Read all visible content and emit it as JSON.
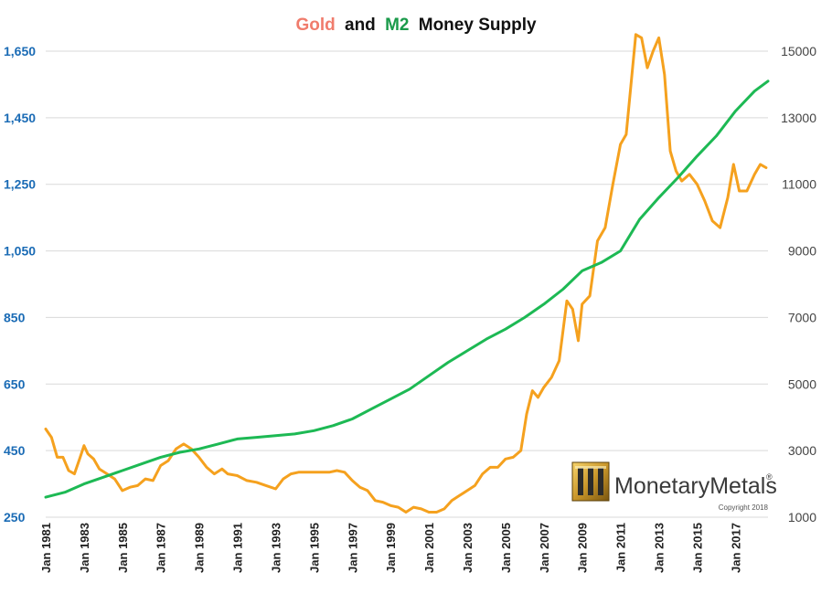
{
  "chart_data": {
    "type": "line",
    "title": {
      "part1": "Gold",
      "part2": "and",
      "part3": "M2",
      "part4": "Money Supply"
    },
    "left_axis": {
      "ticks": [
        "250",
        "450",
        "650",
        "850",
        "1,050",
        "1,250",
        "1,450",
        "1,650"
      ],
      "range": [
        250,
        1650
      ]
    },
    "right_axis": {
      "ticks": [
        "1000",
        "3000",
        "5000",
        "7000",
        "9000",
        "11000",
        "13000",
        "15000"
      ],
      "range": [
        1000,
        15000
      ]
    },
    "x_axis": {
      "ticks": [
        "Jan 1981",
        "Jan 1983",
        "Jan 1985",
        "Jan 1987",
        "Jan 1989",
        "Jan 1991",
        "Jan 1993",
        "Jan 1995",
        "Jan 1997",
        "Jan 1999",
        "Jan 2001",
        "Jan 2003",
        "Jan 2005",
        "Jan 2007",
        "Jan 2009",
        "Jan 2011",
        "Jan 2013",
        "Jan 2015",
        "Jan 2017"
      ],
      "range": [
        1981,
        2018.7
      ]
    },
    "series": [
      {
        "name": "Gold",
        "axis": "left",
        "color": "#f5a11e",
        "x": [
          1981.0,
          1981.3,
          1981.6,
          1981.9,
          1982.2,
          1982.5,
          1982.8,
          1983.0,
          1983.2,
          1983.5,
          1983.8,
          1984.2,
          1984.6,
          1985.0,
          1985.4,
          1985.8,
          1986.2,
          1986.6,
          1987.0,
          1987.4,
          1987.8,
          1988.2,
          1988.6,
          1989.0,
          1989.4,
          1989.8,
          1990.2,
          1990.5,
          1991.0,
          1991.5,
          1992.0,
          1992.5,
          1993.0,
          1993.4,
          1993.8,
          1994.2,
          1994.6,
          1995.0,
          1995.4,
          1995.8,
          1996.2,
          1996.6,
          1997.0,
          1997.4,
          1997.8,
          1998.2,
          1998.6,
          1999.0,
          1999.4,
          1999.8,
          2000.2,
          2000.6,
          2001.0,
          2001.4,
          2001.8,
          2002.2,
          2002.6,
          2003.0,
          2003.4,
          2003.8,
          2004.2,
          2004.6,
          2005.0,
          2005.4,
          2005.8,
          2006.1,
          2006.4,
          2006.7,
          2007.0,
          2007.4,
          2007.8,
          2008.2,
          2008.5,
          2008.8,
          2009.0,
          2009.4,
          2009.8,
          2010.2,
          2010.6,
          2011.0,
          2011.3,
          2011.6,
          2011.8,
          2012.1,
          2012.4,
          2012.7,
          2013.0,
          2013.3,
          2013.6,
          2013.9,
          2014.2,
          2014.6,
          2015.0,
          2015.4,
          2015.8,
          2016.2,
          2016.6,
          2016.9,
          2017.2,
          2017.6,
          2018.0,
          2018.3,
          2018.6
        ],
        "values": [
          515,
          490,
          430,
          430,
          390,
          380,
          430,
          465,
          440,
          425,
          395,
          380,
          365,
          330,
          340,
          345,
          365,
          360,
          405,
          420,
          455,
          470,
          455,
          430,
          400,
          380,
          395,
          380,
          375,
          360,
          355,
          345,
          335,
          365,
          380,
          385,
          385,
          385,
          385,
          385,
          390,
          385,
          360,
          340,
          330,
          300,
          295,
          285,
          280,
          265,
          280,
          275,
          265,
          265,
          275,
          300,
          315,
          330,
          345,
          380,
          400,
          400,
          425,
          430,
          450,
          560,
          630,
          610,
          640,
          670,
          720,
          900,
          875,
          780,
          890,
          915,
          1080,
          1120,
          1250,
          1370,
          1400,
          1580,
          1700,
          1690,
          1600,
          1650,
          1690,
          1580,
          1350,
          1290,
          1260,
          1280,
          1250,
          1200,
          1140,
          1120,
          1210,
          1310,
          1230,
          1230,
          1280,
          1310,
          1300
        ]
      },
      {
        "name": "M2",
        "axis": "right",
        "color": "#1db954",
        "x": [
          1981.0,
          1982.0,
          1983.0,
          1984.0,
          1985.0,
          1986.0,
          1987.0,
          1988.0,
          1989.0,
          1990.0,
          1991.0,
          1992.0,
          1993.0,
          1994.0,
          1995.0,
          1996.0,
          1997.0,
          1998.0,
          1999.0,
          2000.0,
          2001.0,
          2002.0,
          2003.0,
          2004.0,
          2005.0,
          2006.0,
          2007.0,
          2008.0,
          2009.0,
          2010.0,
          2011.0,
          2012.0,
          2013.0,
          2014.0,
          2015.0,
          2016.0,
          2017.0,
          2018.0,
          2018.7
        ],
        "values": [
          1600,
          1750,
          2000,
          2200,
          2400,
          2600,
          2800,
          2950,
          3050,
          3200,
          3350,
          3400,
          3450,
          3500,
          3600,
          3750,
          3950,
          4250,
          4550,
          4850,
          5250,
          5650,
          6000,
          6350,
          6650,
          7000,
          7400,
          7850,
          8400,
          8650,
          9000,
          9950,
          10600,
          11200,
          11850,
          12450,
          13200,
          13800,
          14100
        ]
      }
    ],
    "logo": {
      "name_part1": "Monetary",
      "name_part2": "Metals",
      "registered": "®",
      "copyright": "Copyright 2018"
    }
  }
}
